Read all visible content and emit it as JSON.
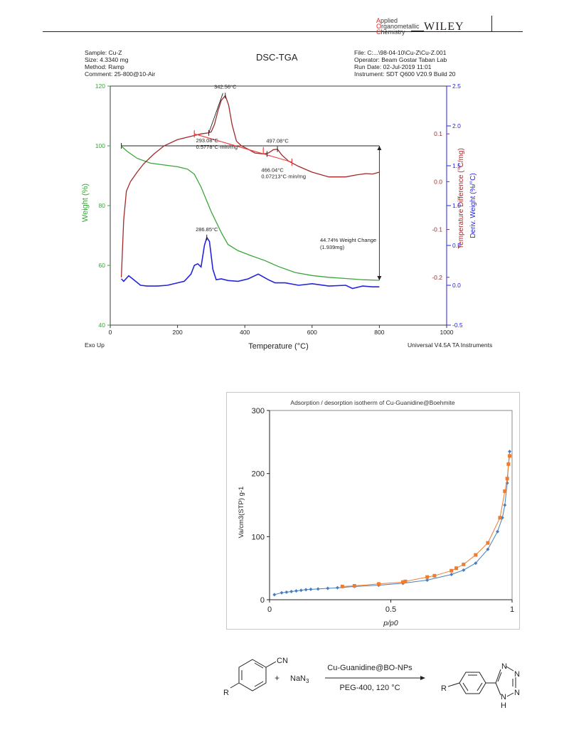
{
  "header": {
    "journal_lines": [
      {
        "first": "A",
        "rest": "pplied"
      },
      {
        "first": "O",
        "rest": "rganometallic"
      },
      {
        "first": "C",
        "rest": "hemistry"
      }
    ],
    "publisher": "WILEY"
  },
  "tga": {
    "meta_left": [
      "Sample: Cu-Z",
      "Size: 4.3340 mg",
      "Method: Ramp",
      "Comment: 25-800@10-Air"
    ],
    "title": "DSC-TGA",
    "meta_right": [
      "File: C:...\\98-04-10\\Cu-Z\\Cu-Z.001",
      "Operator: Beam Gostar Taban Lab",
      "Run Date: 02-Jul-2019 11:01",
      "Instrument: SDT Q600 V20.9 Build 20"
    ],
    "footer_left": "Exo Up",
    "footer_right": "Universal V4.5A TA Instruments"
  },
  "chart_data": [
    {
      "type": "line",
      "title": "DSC-TGA",
      "xlabel": "Temperature (°C)",
      "xlim": [
        0,
        1000
      ],
      "xticks": [
        "0",
        "200",
        "400",
        "600",
        "800",
        "1000"
      ],
      "ylabel_left": "Weight (%)",
      "ylim_left": [
        40,
        120
      ],
      "yticks_left": [
        "40",
        "60",
        "80",
        "100",
        "120"
      ],
      "ylabel_right1": "Temperature Difference (°C/mg)",
      "ylim_right1": [
        -0.3,
        0.2
      ],
      "yticks_right1": [
        "-0.2",
        "-0.1",
        "0.0",
        "0.1"
      ],
      "ylabel_right2": "Deriv. Weight (%/°C)",
      "ylim_right2": [
        -0.5,
        2.5
      ],
      "yticks_right2": [
        "-0.5",
        "0.0",
        "0.5",
        "1.0",
        "1.5",
        "2.0",
        "2.5"
      ],
      "colors": {
        "weight": "#3aa63a",
        "dsc": "#a02a2a",
        "deriv": "#2424dd",
        "marker": "#f23d3d"
      },
      "series": [
        {
          "key": "weight",
          "axis": "left",
          "x": [
            33,
            50,
            80,
            120,
            160,
            200,
            230,
            250,
            270,
            300,
            330,
            350,
            380,
            420,
            460,
            500,
            550,
            600,
            650,
            700,
            750,
            800
          ],
          "y": [
            99.9,
            98.2,
            95.8,
            94.2,
            93.6,
            93.0,
            92.2,
            90.5,
            86.2,
            78.0,
            71.0,
            67.0,
            64.9,
            63.2,
            61.6,
            59.6,
            57.6,
            56.6,
            56.0,
            55.6,
            55.2,
            55.0
          ]
        },
        {
          "key": "dsc",
          "axis": "right1",
          "x": [
            33,
            40,
            48,
            60,
            80,
            100,
            130,
            160,
            200,
            240,
            270,
            290,
            300,
            310,
            320,
            330,
            342,
            352,
            362,
            375,
            390,
            410,
            430,
            455,
            470,
            485,
            497,
            510,
            530,
            560,
            600,
            650,
            700,
            730,
            760,
            780,
            800
          ],
          "y": [
            -0.2,
            -0.08,
            -0.02,
            0.0,
            0.02,
            0.038,
            0.058,
            0.075,
            0.088,
            0.095,
            0.1,
            0.102,
            0.104,
            0.12,
            0.148,
            0.17,
            0.18,
            0.16,
            0.12,
            0.085,
            0.075,
            0.068,
            0.06,
            0.058,
            0.06,
            0.067,
            0.068,
            0.056,
            0.043,
            0.032,
            0.02,
            0.01,
            0.01,
            0.014,
            0.017,
            0.016,
            0.02
          ]
        },
        {
          "key": "deriv",
          "axis": "right2",
          "x": [
            33,
            40,
            55,
            70,
            90,
            110,
            140,
            170,
            200,
            220,
            240,
            250,
            260,
            270,
            280,
            287,
            295,
            305,
            315,
            330,
            350,
            380,
            410,
            440,
            470,
            490,
            520,
            560,
            600,
            650,
            700,
            720,
            750,
            780,
            800
          ],
          "y": [
            0.08,
            0.05,
            0.12,
            0.07,
            0.0,
            -0.01,
            -0.01,
            0.0,
            0.03,
            0.05,
            0.14,
            0.25,
            0.27,
            0.23,
            0.5,
            0.6,
            0.55,
            0.2,
            0.07,
            0.08,
            0.06,
            0.05,
            0.08,
            0.14,
            0.07,
            0.03,
            0.03,
            0.0,
            0.02,
            -0.01,
            0.0,
            -0.04,
            -0.01,
            -0.02,
            -0.02
          ]
        }
      ],
      "annotations": [
        {
          "id": "peak_342",
          "text": "342.56°C",
          "x": 342,
          "axis": "right1",
          "y": 0.18
        },
        {
          "id": "peak_497",
          "text": "497.08°C",
          "x": 497,
          "axis": "right1",
          "y": 0.068
        },
        {
          "id": "onset_293",
          "lines": [
            "293.08°C",
            "0.5778°C·min/mg"
          ],
          "x": 293,
          "axis": "right1",
          "y": 0.102
        },
        {
          "id": "onset_466",
          "lines": [
            "466.04°C",
            "0.07213°C·min/mg"
          ],
          "x": 466,
          "axis": "right1",
          "y": 0.058
        },
        {
          "id": "peak_286",
          "text": "286.85°C",
          "x": 287,
          "axis": "right2",
          "y": 0.6
        },
        {
          "id": "weight_change",
          "lines": [
            "44.74% Weight Change",
            "(1.939mg)"
          ]
        }
      ],
      "red_markers": [
        {
          "x": 250,
          "y": 0.1
        },
        {
          "x": 455,
          "y": 0.065
        },
        {
          "x": 540,
          "y": 0.041
        }
      ]
    },
    {
      "type": "scatter",
      "title": "Adsorption / desorption isotherm of Cu-Guanidine@Boehmite",
      "xlabel": "p/p0",
      "ylabel": "Va/cm3(STP) g-1",
      "xlim": [
        0,
        1
      ],
      "ylim": [
        0,
        300
      ],
      "xticks": [
        "0",
        "0.5",
        "1"
      ],
      "yticks": [
        "0",
        "100",
        "200",
        "300"
      ],
      "series": [
        {
          "key": "adsorption",
          "color": "#4a7ebb",
          "x": [
            0.02,
            0.05,
            0.07,
            0.09,
            0.11,
            0.13,
            0.15,
            0.17,
            0.2,
            0.24,
            0.28,
            0.35,
            0.45,
            0.55,
            0.65,
            0.75,
            0.8,
            0.85,
            0.9,
            0.94,
            0.96,
            0.97,
            0.98,
            0.985,
            0.99
          ],
          "y": [
            8,
            11,
            12,
            13,
            14,
            15,
            16,
            16.5,
            17,
            18,
            19,
            21,
            23,
            26,
            31,
            40,
            47,
            58,
            80,
            108,
            130,
            150,
            185,
            215,
            235
          ]
        },
        {
          "key": "desorption",
          "color": "#ed7d31",
          "x": [
            0.3,
            0.35,
            0.45,
            0.55,
            0.56,
            0.65,
            0.68,
            0.75,
            0.77,
            0.8,
            0.85,
            0.9,
            0.95,
            0.97,
            0.98,
            0.985,
            0.99
          ],
          "y": [
            21,
            22,
            25,
            28,
            29,
            36,
            38,
            46,
            50,
            56,
            71,
            90,
            130,
            172,
            192,
            215,
            228
          ]
        }
      ]
    }
  ],
  "scheme": {
    "reactant_sub": "CN",
    "reactant_r": "R",
    "plus": "+",
    "reagent": "NaN",
    "reagent_sub": "3",
    "above_arrow": "Cu-Guanidine@BO-NPs",
    "below_arrow": "PEG-400, 120 °C",
    "product_r": "R",
    "n1": "N",
    "n2": "N",
    "n3": "N",
    "nh": "N",
    "h": "H"
  }
}
